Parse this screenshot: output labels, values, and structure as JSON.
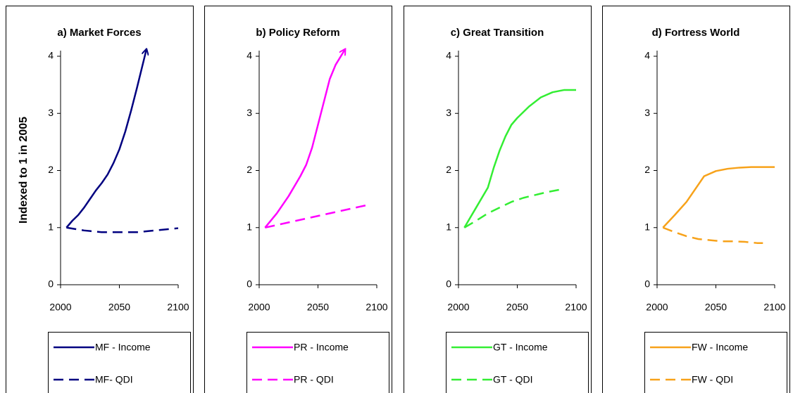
{
  "chart_data": [
    {
      "type": "line",
      "title": "a) Market Forces",
      "ylabel": "Indexed to 1 in 2005",
      "xlim": [
        2000,
        2100
      ],
      "xticks": [
        2000,
        2050,
        2100
      ],
      "ylim": [
        0,
        4
      ],
      "yticks": [
        0,
        1,
        2,
        3,
        4
      ],
      "series": [
        {
          "name": "MF - Income",
          "color": "#000080",
          "dashed": false,
          "arrow": true,
          "x": [
            2005,
            2010,
            2015,
            2020,
            2025,
            2030,
            2035,
            2040,
            2045,
            2050,
            2055,
            2060,
            2065,
            2073
          ],
          "values": [
            1.0,
            1.12,
            1.22,
            1.35,
            1.5,
            1.65,
            1.78,
            1.93,
            2.13,
            2.37,
            2.68,
            3.05,
            3.45,
            4.12
          ]
        },
        {
          "name": "MF- QDI",
          "color": "#000080",
          "dashed": true,
          "arrow": false,
          "x": [
            2005,
            2020,
            2035,
            2050,
            2065,
            2080,
            2100
          ],
          "values": [
            1.0,
            0.95,
            0.92,
            0.92,
            0.92,
            0.95,
            0.99
          ]
        }
      ]
    },
    {
      "type": "line",
      "title": "b) Policy Reform",
      "xlim": [
        2000,
        2100
      ],
      "xticks": [
        2000,
        2050,
        2100
      ],
      "ylim": [
        0,
        4
      ],
      "yticks": [
        0,
        1,
        2,
        3,
        4
      ],
      "series": [
        {
          "name": "PR - Income",
          "color": "#ff00ff",
          "dashed": false,
          "arrow": true,
          "x": [
            2005,
            2015,
            2025,
            2035,
            2040,
            2045,
            2050,
            2055,
            2060,
            2065,
            2073
          ],
          "values": [
            1.0,
            1.25,
            1.55,
            1.9,
            2.1,
            2.4,
            2.8,
            3.2,
            3.6,
            3.85,
            4.12
          ]
        },
        {
          "name": "PR - QDI",
          "color": "#ff00ff",
          "dashed": true,
          "arrow": false,
          "x": [
            2005,
            2093
          ],
          "values": [
            1.0,
            1.4
          ]
        }
      ]
    },
    {
      "type": "line",
      "title": "c) Great Transition",
      "xlim": [
        2000,
        2100
      ],
      "xticks": [
        2000,
        2050,
        2100
      ],
      "ylim": [
        0,
        4
      ],
      "yticks": [
        0,
        1,
        2,
        3,
        4
      ],
      "series": [
        {
          "name": "GT - Income",
          "color": "#33ee33",
          "dashed": false,
          "arrow": false,
          "x": [
            2005,
            2015,
            2025,
            2030,
            2035,
            2040,
            2045,
            2050,
            2060,
            2070,
            2080,
            2090,
            2100
          ],
          "values": [
            1.0,
            1.35,
            1.7,
            2.05,
            2.35,
            2.6,
            2.8,
            2.92,
            3.12,
            3.28,
            3.37,
            3.41,
            3.41
          ]
        },
        {
          "name": "GT - QDI",
          "color": "#33ee33",
          "dashed": true,
          "arrow": false,
          "x": [
            2005,
            2015,
            2025,
            2035,
            2045,
            2055,
            2065,
            2075,
            2090
          ],
          "values": [
            1.0,
            1.12,
            1.25,
            1.35,
            1.45,
            1.52,
            1.57,
            1.62,
            1.68
          ]
        }
      ]
    },
    {
      "type": "line",
      "title": "d) Fortress World",
      "xlim": [
        2000,
        2100
      ],
      "xticks": [
        2000,
        2050,
        2100
      ],
      "ylim": [
        0,
        4
      ],
      "yticks": [
        0,
        1,
        2,
        3,
        4
      ],
      "series": [
        {
          "name": "FW - Income",
          "color": "#f7a21a",
          "dashed": false,
          "arrow": false,
          "x": [
            2005,
            2015,
            2025,
            2040,
            2050,
            2060,
            2070,
            2080,
            2100
          ],
          "values": [
            1.0,
            1.22,
            1.45,
            1.9,
            1.99,
            2.03,
            2.05,
            2.06,
            2.06
          ]
        },
        {
          "name": "FW - QDI",
          "color": "#f7a21a",
          "dashed": true,
          "arrow": false,
          "x": [
            2005,
            2015,
            2025,
            2035,
            2045,
            2055,
            2065,
            2075,
            2085,
            2090
          ],
          "values": [
            1.0,
            0.92,
            0.85,
            0.8,
            0.78,
            0.76,
            0.76,
            0.75,
            0.73,
            0.73
          ]
        }
      ]
    }
  ]
}
